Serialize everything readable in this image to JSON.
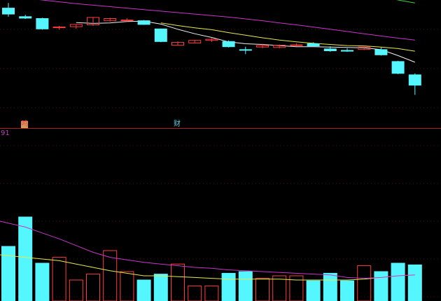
{
  "colors": {
    "background": "#000000",
    "grid": "#5a0f0f",
    "divider": "#b01c1c",
    "up": "#ff3b3b",
    "down": "#54f7ff",
    "ma_short": "#f2f2f2",
    "ma_mid": "#e8e84a",
    "ma_long": "#cc33cc",
    "ma_very_long": "#39d439",
    "marker_text": "#5ecfe6",
    "readout_text": "#c040c0"
  },
  "markers": [
    {
      "name": "marker-left",
      "text": "鸣",
      "session": 1
    },
    {
      "name": "marker-mid",
      "text": "财",
      "session": 10
    }
  ],
  "readout": {
    "value": "91"
  },
  "chart_data": [
    {
      "type": "candlestick",
      "ylim": [
        7.6,
        11.0
      ],
      "grid": true,
      "candles": [
        {
          "o": 10.78,
          "h": 10.92,
          "l": 10.55,
          "c": 10.62
        },
        {
          "o": 10.55,
          "h": 10.6,
          "l": 10.49,
          "c": 10.51
        },
        {
          "o": 10.5,
          "h": 10.52,
          "l": 10.2,
          "c": 10.22
        },
        {
          "o": 10.27,
          "h": 10.3,
          "l": 10.2,
          "c": 10.27
        },
        {
          "o": 10.28,
          "h": 10.34,
          "l": 10.22,
          "c": 10.34
        },
        {
          "o": 10.33,
          "h": 10.53,
          "l": 10.3,
          "c": 10.53
        },
        {
          "o": 10.44,
          "h": 10.52,
          "l": 10.42,
          "c": 10.5
        },
        {
          "o": 10.46,
          "h": 10.51,
          "l": 10.42,
          "c": 10.46
        },
        {
          "o": 10.44,
          "h": 10.46,
          "l": 10.33,
          "c": 10.34
        },
        {
          "o": 10.22,
          "h": 10.23,
          "l": 9.86,
          "c": 9.88
        },
        {
          "o": 9.78,
          "h": 9.88,
          "l": 9.78,
          "c": 9.86
        },
        {
          "o": 9.84,
          "h": 9.92,
          "l": 9.84,
          "c": 9.91
        },
        {
          "o": 9.91,
          "h": 9.97,
          "l": 9.87,
          "c": 9.94
        },
        {
          "o": 9.88,
          "h": 9.91,
          "l": 9.72,
          "c": 9.74
        },
        {
          "o": 9.66,
          "h": 9.74,
          "l": 9.54,
          "c": 9.65
        },
        {
          "o": 9.73,
          "h": 9.82,
          "l": 9.7,
          "c": 9.77
        },
        {
          "o": 9.72,
          "h": 9.8,
          "l": 9.7,
          "c": 9.78
        },
        {
          "o": 9.78,
          "h": 9.83,
          "l": 9.75,
          "c": 9.79
        },
        {
          "o": 9.82,
          "h": 9.86,
          "l": 9.75,
          "c": 9.76
        },
        {
          "o": 9.68,
          "h": 9.75,
          "l": 9.6,
          "c": 9.63
        },
        {
          "o": 9.64,
          "h": 9.7,
          "l": 9.6,
          "c": 9.62
        },
        {
          "o": 9.67,
          "h": 9.74,
          "l": 9.65,
          "c": 9.73
        },
        {
          "o": 9.66,
          "h": 9.72,
          "l": 9.5,
          "c": 9.52
        },
        {
          "o": 9.34,
          "h": 9.36,
          "l": 9.0,
          "c": 9.02
        },
        {
          "o": 8.98,
          "h": 9.02,
          "l": 8.44,
          "c": 8.7
        }
      ],
      "ma": [
        {
          "color_key": "ma_short",
          "values": [
            null,
            null,
            null,
            null,
            10.39,
            10.37,
            10.38,
            10.42,
            10.43,
            10.35,
            10.21,
            10.09,
            9.99,
            9.87,
            9.82,
            9.8,
            9.77,
            9.74,
            9.74,
            9.73,
            9.72,
            9.71,
            9.66,
            9.5,
            9.32
          ]
        },
        {
          "color_key": "ma_mid",
          "values": [
            null,
            null,
            null,
            null,
            null,
            null,
            null,
            null,
            null,
            10.38,
            10.31,
            10.25,
            10.2,
            10.12,
            10.05,
            9.98,
            9.92,
            9.87,
            9.83,
            9.8,
            9.77,
            9.76,
            9.73,
            9.69,
            9.62
          ]
        },
        {
          "color_key": "ma_long",
          "values": [
            11.1,
            11.05,
            11.0,
            10.95,
            10.9,
            10.86,
            10.82,
            10.78,
            10.74,
            10.7,
            10.66,
            10.62,
            10.58,
            10.54,
            10.49,
            10.44,
            10.38,
            10.33,
            10.27,
            10.21,
            10.15,
            10.09,
            10.03,
            9.97,
            9.92
          ]
        },
        {
          "color_key": "ma_very_long",
          "values": [
            null,
            null,
            null,
            null,
            null,
            null,
            null,
            null,
            null,
            null,
            null,
            null,
            null,
            null,
            null,
            null,
            null,
            null,
            null,
            null,
            11.3,
            11.2,
            11.1,
            11.0,
            10.92
          ]
        }
      ]
    },
    {
      "type": "bar",
      "ylim": [
        0,
        100
      ],
      "volumes": [
        65,
        100,
        45,
        52,
        25,
        32,
        60,
        35,
        25,
        32,
        44,
        18,
        18,
        33,
        35,
        27,
        30,
        30,
        24,
        33,
        24,
        42,
        35,
        45,
        43
      ],
      "ma": [
        {
          "color_key": "ma_mid",
          "values": [
            55,
            52,
            50,
            48,
            44,
            40,
            36,
            33,
            30,
            30,
            29,
            28,
            27,
            26,
            26,
            26,
            26,
            25,
            25,
            25,
            25,
            26,
            28,
            30,
            31
          ]
        },
        {
          "color_key": "ma_long",
          "values": [
            95,
            88,
            81,
            74,
            66,
            58,
            52,
            49,
            46,
            44,
            42,
            40,
            39,
            37,
            36,
            35,
            34,
            33,
            32,
            31,
            28,
            27,
            28,
            30,
            31
          ]
        }
      ]
    }
  ]
}
